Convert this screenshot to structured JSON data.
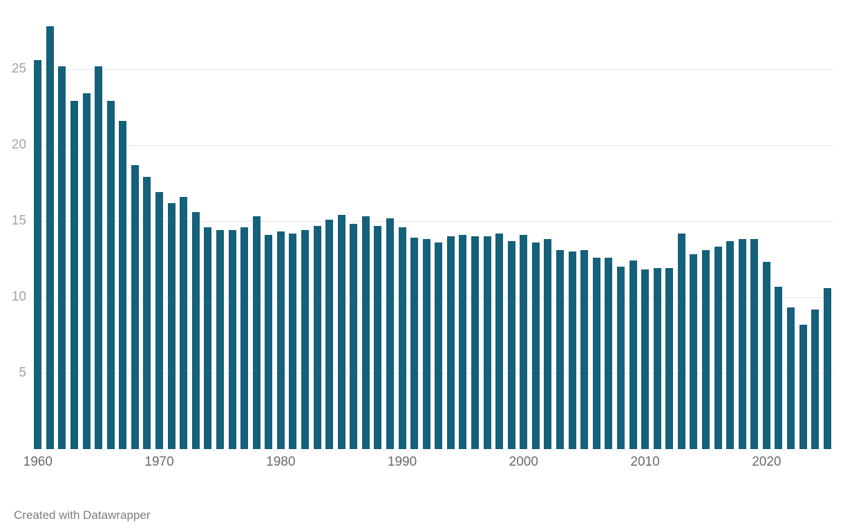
{
  "chart_data": {
    "type": "bar",
    "title": "",
    "xlabel": "",
    "ylabel": "",
    "start_year": 1960,
    "values": [
      25.6,
      27.8,
      25.2,
      22.9,
      23.4,
      25.2,
      22.9,
      21.6,
      18.7,
      17.9,
      16.9,
      16.2,
      16.6,
      15.6,
      14.6,
      14.4,
      14.4,
      14.6,
      15.3,
      14.1,
      14.3,
      14.2,
      14.4,
      14.7,
      15.1,
      15.4,
      14.8,
      15.3,
      14.7,
      15.2,
      14.6,
      13.9,
      13.8,
      13.6,
      14.0,
      14.1,
      14.0,
      14.0,
      14.2,
      13.7,
      14.1,
      13.6,
      13.8,
      13.1,
      13.0,
      13.1,
      12.6,
      12.6,
      12.0,
      12.4,
      11.8,
      11.9,
      11.9,
      14.2,
      12.8,
      13.1,
      13.3,
      13.7,
      13.8,
      13.8,
      12.3,
      10.7,
      9.3,
      8.2,
      9.2,
      10.6
    ],
    "yticks": [
      5,
      10,
      15,
      20,
      25
    ],
    "xticks": [
      1960,
      1970,
      1980,
      1990,
      2000,
      2010,
      2020
    ],
    "ylim": [
      0,
      29.5
    ],
    "grid": true,
    "legend": "none",
    "bar_color": "#15607a",
    "gridline_color": "#e6e6e6",
    "ytick_color": "#a3a3a3",
    "xtick_color": "#696969"
  },
  "footer": {
    "credit": "Created with Datawrapper"
  }
}
